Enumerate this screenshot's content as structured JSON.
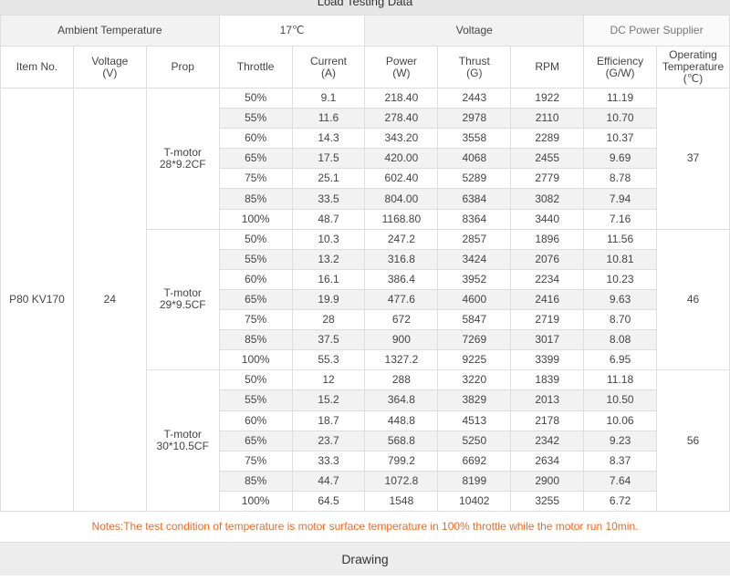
{
  "title": "Load Testing Data",
  "table": {
    "top_row": [
      "Ambient Temperature",
      "17℃",
      "Voltage",
      "DC Power Supplier"
    ],
    "header": [
      "Item No.",
      "Voltage\n(V)",
      "Prop",
      "Throttle",
      "Current\n(A)",
      "Power\n(W)",
      "Thrust\n(G)",
      "RPM",
      "Efficiency\n(G/W)",
      "Operating\nTemperature\n(℃)"
    ],
    "item": "P80 KV170",
    "voltage": "24",
    "groups": [
      {
        "prop": "T-motor\n28*9.2CF",
        "temperature": "37",
        "rows": [
          [
            "50%",
            "9.1",
            "218.40",
            "2443",
            "1922",
            "11.19"
          ],
          [
            "55%",
            "11.6",
            "278.40",
            "2978",
            "2110",
            "10.70"
          ],
          [
            "60%",
            "14.3",
            "343.20",
            "3558",
            "2289",
            "10.37"
          ],
          [
            "65%",
            "17.5",
            "420.00",
            "4068",
            "2455",
            "9.69"
          ],
          [
            "75%",
            "25.1",
            "602.40",
            "5289",
            "2779",
            "8.78"
          ],
          [
            "85%",
            "33.5",
            "804.00",
            "6384",
            "3082",
            "7.94"
          ],
          [
            "100%",
            "48.7",
            "1168.80",
            "8364",
            "3440",
            "7.16"
          ]
        ]
      },
      {
        "prop": "T-motor\n29*9.5CF",
        "temperature": "46",
        "rows": [
          [
            "50%",
            "10.3",
            "247.2",
            "2857",
            "1896",
            "11.56"
          ],
          [
            "55%",
            "13.2",
            "316.8",
            "3424",
            "2076",
            "10.81"
          ],
          [
            "60%",
            "16.1",
            "386.4",
            "3952",
            "2234",
            "10.23"
          ],
          [
            "65%",
            "19.9",
            "477.6",
            "4600",
            "2416",
            "9.63"
          ],
          [
            "75%",
            "28",
            "672",
            "5847",
            "2719",
            "8.70"
          ],
          [
            "85%",
            "37.5",
            "900",
            "7269",
            "3017",
            "8.08"
          ],
          [
            "100%",
            "55.3",
            "1327.2",
            "9225",
            "3399",
            "6.95"
          ]
        ]
      },
      {
        "prop": "T-motor\n30*10.5CF",
        "temperature": "56",
        "rows": [
          [
            "50%",
            "12",
            "288",
            "3220",
            "1839",
            "11.18"
          ],
          [
            "55%",
            "15.2",
            "364.8",
            "3829",
            "2013",
            "10.50"
          ],
          [
            "60%",
            "18.7",
            "448.8",
            "4513",
            "2178",
            "10.06"
          ],
          [
            "65%",
            "23.7",
            "568.8",
            "5250",
            "2342",
            "9.23"
          ],
          [
            "75%",
            "33.3",
            "799.2",
            "6692",
            "2634",
            "8.37"
          ],
          [
            "85%",
            "44.7",
            "1072.8",
            "8199",
            "2900",
            "7.64"
          ],
          [
            "100%",
            "64.5",
            "1548",
            "10402",
            "3255",
            "6.72"
          ]
        ]
      }
    ]
  },
  "note": "Notes:The test condition of temperature is motor surface temperature in 100% throttle while the motor run 10min.",
  "drawing": "Drawing"
}
